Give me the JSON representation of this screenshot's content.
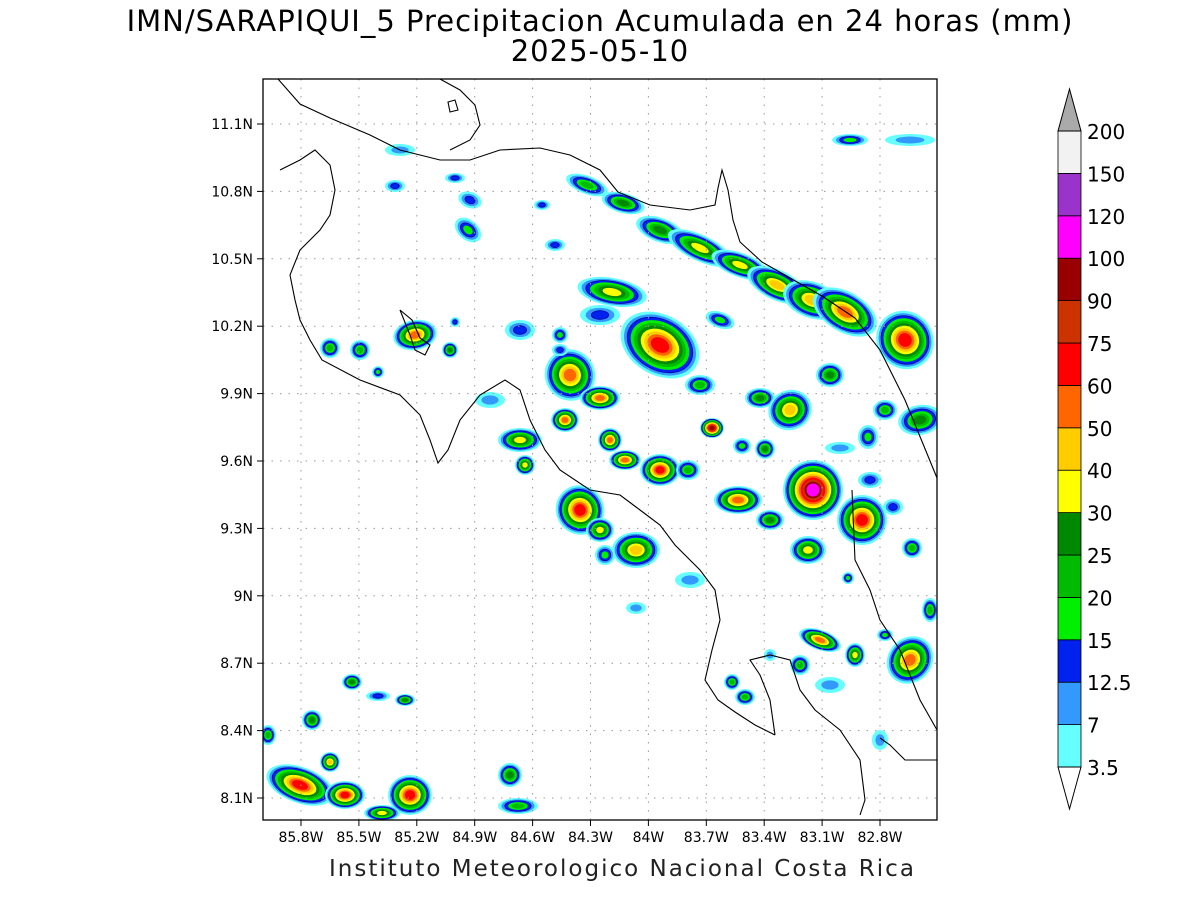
{
  "map": {
    "title": "IMN/SARAPIQUI_5 Precipitacion Acumulada en 24 horas (mm)",
    "date": "2025-05-10",
    "footer": "Instituto Meteorologico Nacional Costa Rica",
    "lat_ticks": [
      "11.1N",
      "10.8N",
      "10.5N",
      "10.2N",
      "9.9N",
      "9.6N",
      "9.3N",
      "9N",
      "8.7N",
      "8.4N",
      "8.1N"
    ],
    "lon_ticks": [
      "85.8W",
      "85.5W",
      "85.2W",
      "84.9W",
      "84.6W",
      "84.3W",
      "84W",
      "83.7W",
      "83.4W",
      "83.1W",
      "82.8W"
    ],
    "lat_values": [
      11.1,
      10.8,
      10.5,
      10.2,
      9.9,
      9.6,
      9.3,
      9.0,
      8.7,
      8.4,
      8.1
    ],
    "lon_values": [
      -85.8,
      -85.5,
      -85.2,
      -84.9,
      -84.6,
      -84.3,
      -84.0,
      -83.7,
      -83.4,
      -83.1,
      -82.8
    ],
    "extent": {
      "lon_min": -86.1,
      "lon_max": -82.5,
      "lat_min": 8.0,
      "lat_max": 11.3
    },
    "grid": true
  },
  "legend": {
    "levels": [
      "3.5",
      "7",
      "12.5",
      "15",
      "20",
      "25",
      "30",
      "40",
      "50",
      "60",
      "75",
      "90",
      "100",
      "120",
      "150",
      "200"
    ],
    "colors": [
      "#66ffff",
      "#3399ff",
      "#0022ee",
      "#00ee00",
      "#00bb00",
      "#008800",
      "#ffff00",
      "#ffcc00",
      "#ff6600",
      "#ff0000",
      "#cc3300",
      "#990000",
      "#ff00ff",
      "#9933cc",
      "#f2f2f2",
      "#aaaaaa"
    ],
    "extend": "both"
  }
}
